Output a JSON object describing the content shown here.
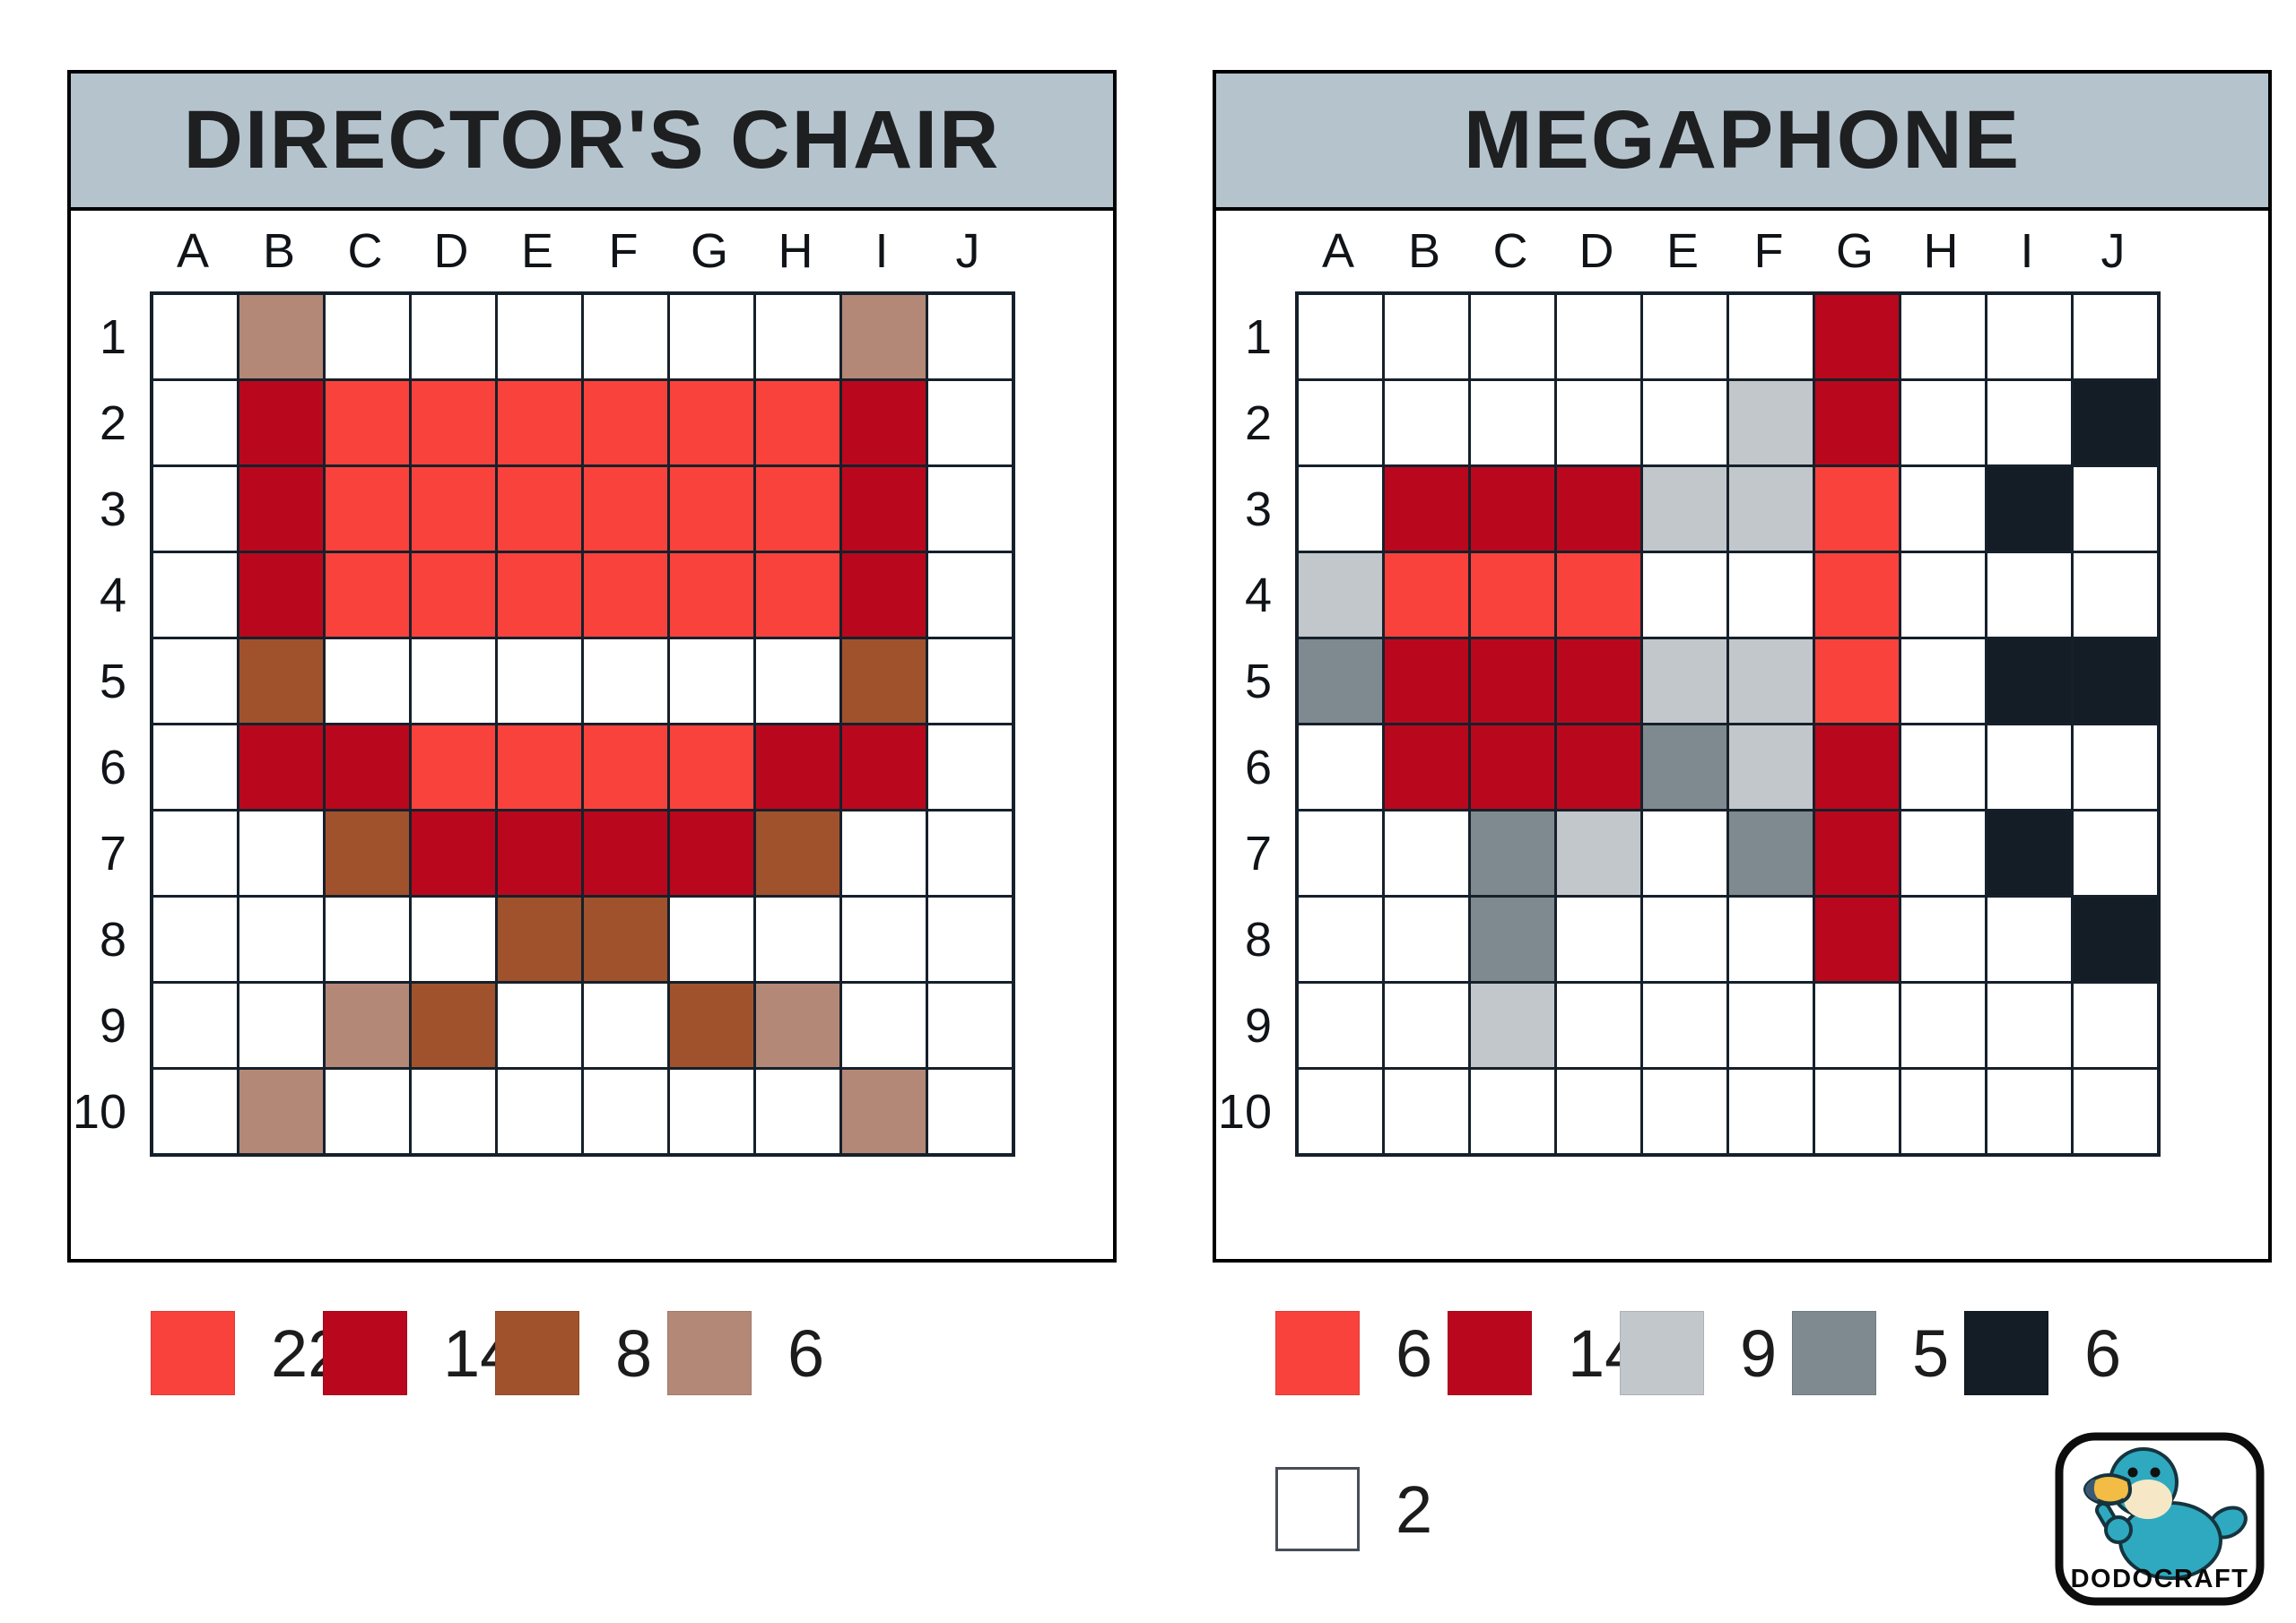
{
  "colors": {
    "page_bg": "#ffffff",
    "title_bar": "#b5c3cd",
    "grid_line": "#16202b",
    "panel_border": "#000000",
    "logo_teal": "#2fa9c0",
    "logo_face": "#f6e8c6",
    "logo_beak": "#f2bc45",
    "logo_beak_tip": "#3a5a74"
  },
  "palette": {
    "T": "#f9423c",
    "R": "#b9081d",
    "B": "#a0522d",
    "N": "#b38877",
    "L": "#c2c7cb",
    "M": "#7e8a90",
    "K": "#141d26",
    "W": "#ffffff"
  },
  "palette_names": {
    "T": "red",
    "R": "dark-red",
    "B": "brown",
    "N": "tan",
    "L": "light-gray",
    "M": "gray",
    "K": "black",
    "W": "white"
  },
  "puzzles": [
    {
      "title": "DIRECTOR'S CHAIR",
      "columns": [
        "A",
        "B",
        "C",
        "D",
        "E",
        "F",
        "G",
        "H",
        "I",
        "J"
      ],
      "rows": [
        "1",
        "2",
        "3",
        "4",
        "5",
        "6",
        "7",
        "8",
        "9",
        "10"
      ],
      "cells": [
        [
          "",
          "N",
          "",
          "",
          "",
          "",
          "",
          "",
          "N",
          ""
        ],
        [
          "",
          "R",
          "T",
          "T",
          "T",
          "T",
          "T",
          "T",
          "R",
          ""
        ],
        [
          "",
          "R",
          "T",
          "T",
          "T",
          "T",
          "T",
          "T",
          "R",
          ""
        ],
        [
          "",
          "R",
          "T",
          "T",
          "T",
          "T",
          "T",
          "T",
          "R",
          ""
        ],
        [
          "",
          "B",
          "",
          "",
          "",
          "",
          "",
          "",
          "B",
          ""
        ],
        [
          "",
          "R",
          "R",
          "T",
          "T",
          "T",
          "T",
          "R",
          "R",
          ""
        ],
        [
          "",
          "",
          "B",
          "R",
          "R",
          "R",
          "R",
          "B",
          "",
          ""
        ],
        [
          "",
          "",
          "",
          "",
          "B",
          "B",
          "",
          "",
          "",
          ""
        ],
        [
          "",
          "",
          "N",
          "B",
          "",
          "",
          "B",
          "N",
          "",
          ""
        ],
        [
          "",
          "N",
          "",
          "",
          "",
          "",
          "",
          "",
          "N",
          ""
        ]
      ],
      "legend": [
        {
          "color": "T",
          "name": "red",
          "count": "22"
        },
        {
          "color": "R",
          "name": "dark-red",
          "count": "14"
        },
        {
          "color": "B",
          "name": "brown",
          "count": "8"
        },
        {
          "color": "N",
          "name": "tan",
          "count": "6"
        }
      ]
    },
    {
      "title": "MEGAPHONE",
      "columns": [
        "A",
        "B",
        "C",
        "D",
        "E",
        "F",
        "G",
        "H",
        "I",
        "J"
      ],
      "rows": [
        "1",
        "2",
        "3",
        "4",
        "5",
        "6",
        "7",
        "8",
        "9",
        "10"
      ],
      "cells": [
        [
          "",
          "",
          "",
          "",
          "",
          "",
          "R",
          "",
          "",
          ""
        ],
        [
          "",
          "",
          "",
          "",
          "",
          "L",
          "R",
          "",
          "",
          "K"
        ],
        [
          "",
          "R",
          "R",
          "R",
          "L",
          "L",
          "T",
          "",
          "K",
          ""
        ],
        [
          "L",
          "T",
          "T",
          "T",
          "",
          "",
          "T",
          "",
          "",
          ""
        ],
        [
          "M",
          "R",
          "R",
          "R",
          "L",
          "L",
          "T",
          "",
          "K",
          "K"
        ],
        [
          "",
          "R",
          "R",
          "R",
          "M",
          "L",
          "R",
          "",
          "",
          ""
        ],
        [
          "",
          "",
          "M",
          "L",
          "",
          "M",
          "R",
          "",
          "K",
          ""
        ],
        [
          "",
          "",
          "M",
          "",
          "",
          "",
          "R",
          "",
          "",
          "K"
        ],
        [
          "",
          "",
          "L",
          "",
          "",
          "",
          "",
          "",
          "",
          ""
        ],
        [
          "",
          "",
          "",
          "",
          "",
          "",
          "",
          "",
          "",
          ""
        ]
      ],
      "legend": [
        {
          "color": "T",
          "name": "red",
          "count": "6"
        },
        {
          "color": "R",
          "name": "dark-red",
          "count": "14"
        },
        {
          "color": "L",
          "name": "light-gray",
          "count": "9"
        },
        {
          "color": "M",
          "name": "gray",
          "count": "5"
        },
        {
          "color": "K",
          "name": "black",
          "count": "6"
        }
      ],
      "legend2": [
        {
          "color": "W",
          "name": "white",
          "count": "2"
        }
      ]
    }
  ],
  "logo": {
    "text": "DODOCRAFT"
  }
}
